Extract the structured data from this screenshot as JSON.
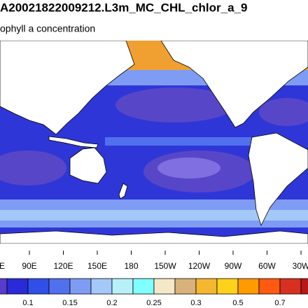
{
  "title": "A20021822009212.L3m_MC_CHL_chlor_a_9",
  "subtitle": "ophyll a concentration",
  "map": {
    "lon_labels": [
      "E",
      "90E",
      "120E",
      "150E",
      "180",
      "150W",
      "120W",
      "90W",
      "60W",
      "30W"
    ]
  },
  "colorbar": {
    "labels": [
      0.1,
      0.15,
      0.2,
      0.25,
      0.3,
      0.5,
      0.7
    ],
    "colors": [
      "#5a3ccc",
      "#2a2ad8",
      "#2f4fe8",
      "#5070ee",
      "#7f9cf4",
      "#a4c8f8",
      "#b8f0f8",
      "#80ffff",
      "#f5e8c8",
      "#d9b17a",
      "#f5b730",
      "#ffd21a",
      "#ff9a00",
      "#ff5a10",
      "#d83020",
      "#b81818"
    ]
  }
}
